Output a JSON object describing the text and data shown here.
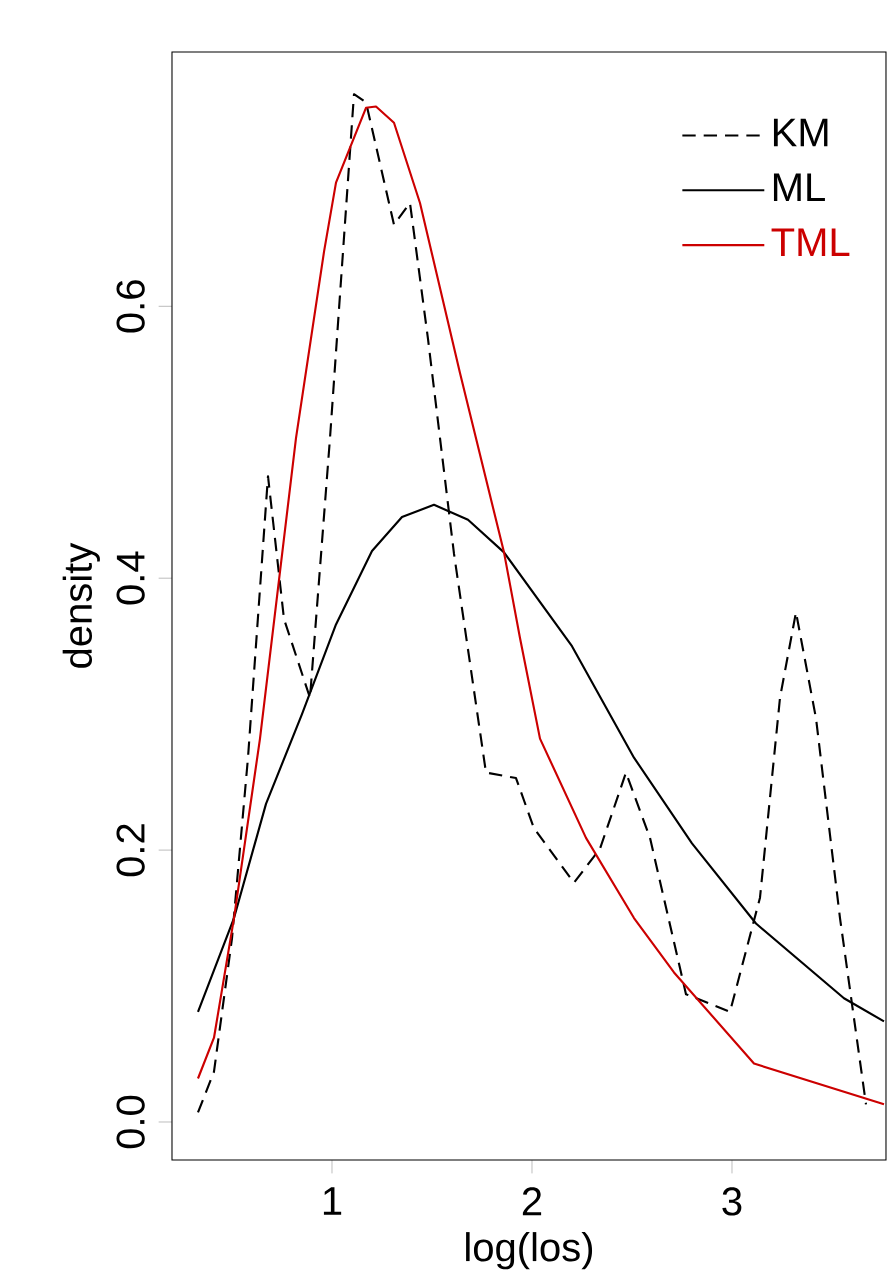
{
  "chart_data": {
    "type": "line",
    "xlabel": "log(los)",
    "ylabel": "density",
    "xlim": [
      0.2,
      3.77
    ],
    "ylim": [
      -0.028,
      0.787
    ],
    "xticks": [
      1,
      2,
      3
    ],
    "yticks": [
      {
        "value": 0,
        "label": "0.0"
      },
      {
        "value": 0.2,
        "label": "0.2"
      },
      {
        "value": 0.4,
        "label": "0.4"
      },
      {
        "value": 0.6,
        "label": "0.6"
      }
    ],
    "legend": "top right",
    "series": [
      {
        "name": "KM",
        "color": "#000000",
        "line_style": "dashed",
        "x": [
          0.33,
          0.41,
          0.5,
          0.58,
          0.68,
          0.76,
          0.89,
          0.99,
          1.11,
          1.17,
          1.31,
          1.39,
          1.48,
          1.61,
          1.77,
          1.92,
          2.01,
          2.21,
          2.34,
          2.47,
          2.59,
          2.77,
          2.99,
          3.14,
          3.24,
          3.32,
          3.42,
          3.54,
          3.67
        ],
        "values": [
          0.007,
          0.037,
          0.135,
          0.268,
          0.475,
          0.37,
          0.312,
          0.503,
          0.756,
          0.75,
          0.66,
          0.676,
          0.576,
          0.418,
          0.257,
          0.253,
          0.216,
          0.176,
          0.201,
          0.257,
          0.209,
          0.094,
          0.081,
          0.165,
          0.312,
          0.375,
          0.297,
          0.15,
          0.013
        ]
      },
      {
        "name": "ML",
        "color": "#000000",
        "line_style": "solid",
        "x": [
          0.33,
          0.51,
          0.67,
          0.85,
          1.02,
          1.2,
          1.35,
          1.51,
          1.68,
          1.86,
          2.2,
          2.51,
          2.8,
          3.12,
          3.56,
          3.76
        ],
        "values": [
          0.081,
          0.15,
          0.234,
          0.3,
          0.366,
          0.42,
          0.445,
          0.454,
          0.443,
          0.419,
          0.35,
          0.268,
          0.205,
          0.146,
          0.091,
          0.074
        ]
      },
      {
        "name": "TML",
        "color": "#cc0000",
        "line_style": "solid",
        "x": [
          0.33,
          0.41,
          0.51,
          0.64,
          0.82,
          0.96,
          1.02,
          1.17,
          1.22,
          1.31,
          1.44,
          1.64,
          1.86,
          1.94,
          2.04,
          2.27,
          2.51,
          2.71,
          3.11,
          3.76
        ],
        "values": [
          0.032,
          0.062,
          0.15,
          0.282,
          0.503,
          0.64,
          0.691,
          0.746,
          0.747,
          0.735,
          0.676,
          0.551,
          0.419,
          0.356,
          0.282,
          0.209,
          0.15,
          0.11,
          0.043,
          0.013
        ]
      }
    ]
  }
}
